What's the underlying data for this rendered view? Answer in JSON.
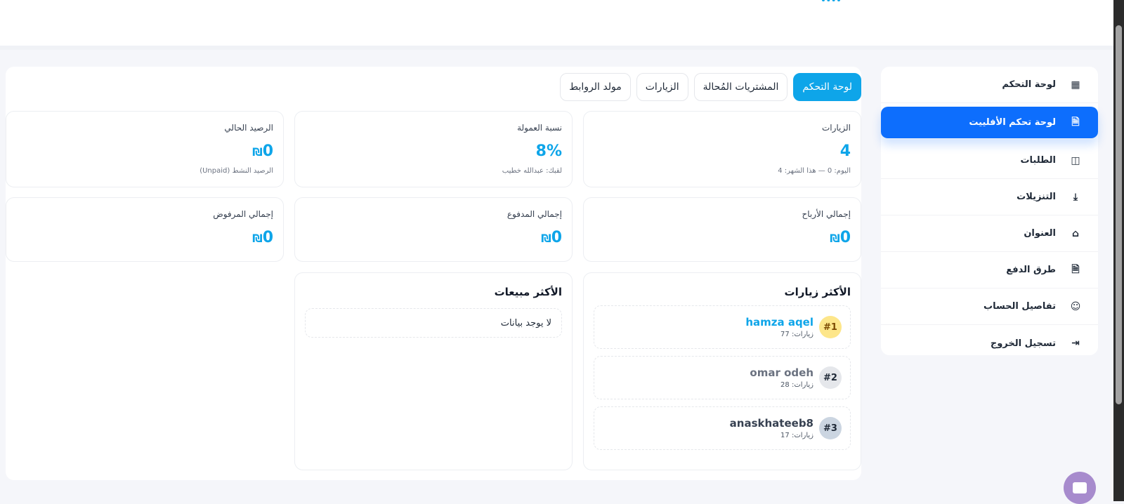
{
  "tabs": [
    {
      "label": "لوحة التحكم",
      "active": true
    },
    {
      "label": "المشتريات المُحالة"
    },
    {
      "label": "الزيارات"
    },
    {
      "label": "مولد الروابط"
    }
  ],
  "stats": {
    "visits": {
      "label": "الزيارات",
      "value": "4",
      "sub": "اليوم: 0 — هذا الشهر: 4"
    },
    "commission": {
      "label": "نسبة العمولة",
      "value": "8%",
      "sub": "لقبك: عبدالله خطيب"
    },
    "balance": {
      "label": "الرصيد الحالي",
      "currency": "₪",
      "value": "0",
      "sub": "الرصيد النشط (Unpaid)"
    },
    "profits": {
      "label": "إجمالي الأرباح",
      "currency": "₪",
      "value": "0"
    },
    "paid": {
      "label": "إجمالي المدفوع",
      "currency": "₪",
      "value": "0"
    },
    "rejected": {
      "label": "إجمالي المرفوض",
      "currency": "₪",
      "value": "0"
    }
  },
  "top_visits": {
    "title": "الأكثر زيارات",
    "items": [
      {
        "rank": "#1",
        "name": "hamza aqel",
        "visits": "زيارات: 77"
      },
      {
        "rank": "#2",
        "name": "omar odeh",
        "visits": "زيارات: 28"
      },
      {
        "rank": "#3",
        "name": "anaskhateeb8",
        "visits": "زيارات: 17"
      }
    ]
  },
  "top_sales": {
    "title": "الأكثر مبيعات",
    "empty": "لا يوجد بيانات"
  },
  "sidebar": {
    "items": [
      {
        "label": "لوحة التحكم",
        "icon": "grid-icon"
      },
      {
        "label": "لوحة تحكم الأفلييت",
        "icon": "document-icon",
        "active": true
      },
      {
        "label": "الطلبات",
        "icon": "bag-icon"
      },
      {
        "label": "التنزيلات",
        "icon": "download-icon"
      },
      {
        "label": "العنوان",
        "icon": "home-icon"
      },
      {
        "label": "طرق الدفع",
        "icon": "document-icon"
      },
      {
        "label": "تفاصيل الحساب",
        "icon": "user-icon"
      },
      {
        "label": "تسجيل الخروج",
        "icon": "logout-icon"
      }
    ]
  },
  "colors": {
    "accent": "#0ea5e9",
    "sidebar_active": "#0d6efd",
    "chat": "#a78bcd",
    "rank1": "#fde68a",
    "rank2": "#e5e7eb",
    "rank3": "#cbd5e1"
  }
}
